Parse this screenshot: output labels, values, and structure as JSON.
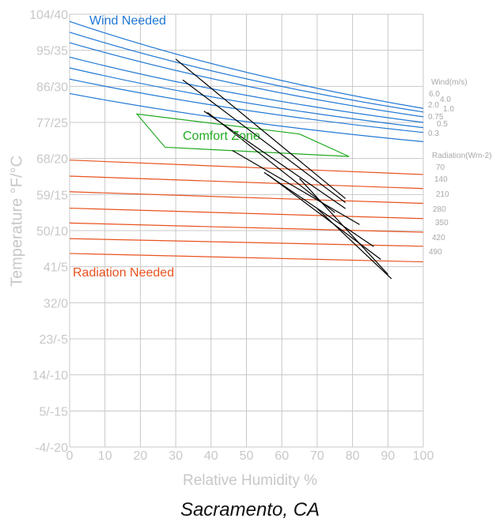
{
  "chart_data": {
    "type": "line",
    "title": "Sacramento, CA",
    "xlabel": "Relative Humidity  %",
    "ylabel": "Temperature °F/°C",
    "xlim": [
      0,
      100
    ],
    "ylim": [
      -4,
      104
    ],
    "x_ticks": [
      "0",
      "10",
      "20",
      "30",
      "40",
      "50",
      "60",
      "70",
      "80",
      "90",
      "100"
    ],
    "y_ticks": [
      {
        "value": 104,
        "label": "104/40"
      },
      {
        "value": 95,
        "label": "95/35"
      },
      {
        "value": 86,
        "label": "86/30"
      },
      {
        "value": 77,
        "label": "77/25"
      },
      {
        "value": 68,
        "label": "68/20"
      },
      {
        "value": 59,
        "label": "59/15"
      },
      {
        "value": 50,
        "label": "50/10"
      },
      {
        "value": 41,
        "label": "41/5"
      },
      {
        "value": 32,
        "label": "32/0"
      },
      {
        "value": 23,
        "label": "23/-5"
      },
      {
        "value": 14,
        "label": "14/-10"
      },
      {
        "value": 5,
        "label": "5/-15"
      },
      {
        "value": -4,
        "label": "-4/-20"
      }
    ],
    "grid": true,
    "annotations": {
      "wind_needed": "Wind Needed",
      "comfort_zone": "Comfort Zone",
      "radiation_needed": "Radiation Needed",
      "wind_header": "Wind(m/s)",
      "radiation_header": "Radiation(Wm-2)"
    },
    "wind_lines": [
      {
        "label": "6.0",
        "start": [
          0,
          102.2
        ],
        "end": [
          100,
          80.5
        ]
      },
      {
        "label": "4.0",
        "start": [
          0,
          99.5
        ],
        "end": [
          100,
          79.6
        ]
      },
      {
        "label": "2.0",
        "start": [
          0,
          96.9
        ],
        "end": [
          100,
          78.4
        ]
      },
      {
        "label": "1.0",
        "start": [
          0,
          93.3
        ],
        "end": [
          100,
          77.0
        ]
      },
      {
        "label": "0.75",
        "start": [
          0,
          90.6
        ],
        "end": [
          100,
          75.7
        ]
      },
      {
        "label": "0.5",
        "start": [
          0,
          87.8
        ],
        "end": [
          100,
          74.5
        ]
      },
      {
        "label": "0.3",
        "start": [
          0,
          84.2
        ],
        "end": [
          100,
          72.2
        ]
      }
    ],
    "radiation_lines": [
      {
        "label": "70",
        "start": [
          0,
          67.6
        ],
        "end": [
          100,
          64.0
        ]
      },
      {
        "label": "140",
        "start": [
          0,
          63.6
        ],
        "end": [
          100,
          60.5
        ]
      },
      {
        "label": "210",
        "start": [
          0,
          59.7
        ],
        "end": [
          100,
          56.8
        ]
      },
      {
        "label": "280",
        "start": [
          0,
          55.6
        ],
        "end": [
          100,
          53.0
        ]
      },
      {
        "label": "350",
        "start": [
          0,
          51.9
        ],
        "end": [
          100,
          49.6
        ]
      },
      {
        "label": "420",
        "start": [
          0,
          48.0
        ],
        "end": [
          100,
          46.1
        ]
      },
      {
        "label": "490",
        "start": [
          0,
          44.3
        ],
        "end": [
          100,
          42.2
        ]
      }
    ],
    "comfort_zone": [
      [
        19,
        79.1
      ],
      [
        65,
        74.1
      ],
      [
        79,
        68.5
      ],
      [
        27,
        70.8
      ]
    ],
    "climate_lines": [
      {
        "start": [
          30,
          92.8
        ],
        "end": [
          78,
          58.0
        ]
      },
      {
        "start": [
          32,
          87.6
        ],
        "end": [
          78,
          57.0
        ]
      },
      {
        "start": [
          38,
          79.8
        ],
        "end": [
          78,
          55.5
        ]
      },
      {
        "start": [
          39,
          79.5
        ],
        "end": [
          75,
          54.5
        ]
      },
      {
        "start": [
          46,
          70.0
        ],
        "end": [
          82,
          51.5
        ]
      },
      {
        "start": [
          55,
          64.5
        ],
        "end": [
          86,
          46.0
        ]
      },
      {
        "start": [
          56,
          64.0
        ],
        "end": [
          88,
          42.8
        ]
      },
      {
        "start": [
          65,
          63.0
        ],
        "end": [
          90,
          39.1
        ]
      },
      {
        "start": [
          70,
          55.5
        ],
        "end": [
          91,
          38.0
        ]
      }
    ],
    "colors": {
      "wind": "#1f77d4",
      "radiation": "#e8521f",
      "comfort": "#22aa22",
      "climate": "#000000",
      "grid": "#c8c8c8",
      "axis_text": "#c8c8c8",
      "small_label": "#a8a8a8",
      "title": "#111111"
    }
  }
}
